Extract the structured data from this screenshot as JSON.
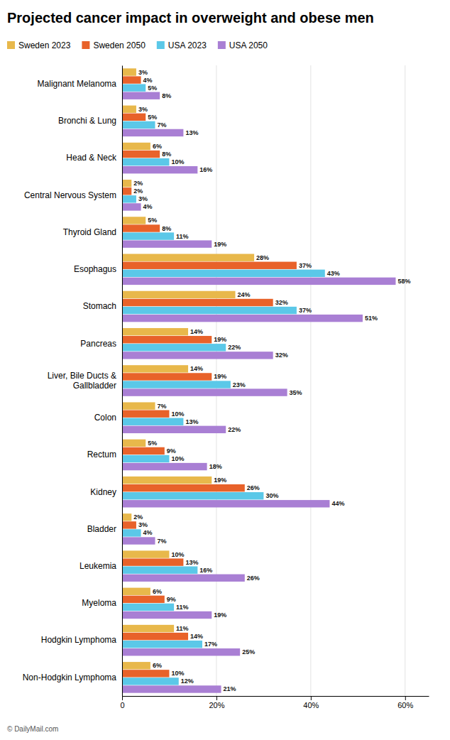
{
  "chart_data": {
    "type": "bar",
    "orientation": "horizontal",
    "title": "Projected cancer impact in overweight and obese men",
    "categories": [
      "Malignant Melanoma",
      "Bronchi & Lung",
      "Head & Neck",
      "Central Nervous System",
      "Thyroid Gland",
      "Esophagus",
      "Stomach",
      "Pancreas",
      "Liver, Bile Ducts &\nGallbladder",
      "Colon",
      "Rectum",
      "Kidney",
      "Bladder",
      "Leukemia",
      "Myeloma",
      "Hodgkin Lymphoma",
      "Non-Hodgkin Lymphoma"
    ],
    "series": [
      {
        "name": "Sweden 2023",
        "color": "#E8B84B",
        "values": [
          3,
          3,
          6,
          2,
          5,
          28,
          24,
          14,
          14,
          7,
          5,
          19,
          2,
          10,
          6,
          11,
          6
        ],
        "value_labels": [
          "3%",
          "3%",
          "6%",
          "2%",
          "5%",
          "28%",
          "24%",
          "14%",
          "14%",
          "7%",
          "5%",
          "19%",
          "2%",
          "10%",
          "6%",
          "11%",
          "6%"
        ]
      },
      {
        "name": "Sweden 2050",
        "color": "#E8622A",
        "values": [
          4,
          5,
          8,
          2,
          8,
          37,
          32,
          19,
          19,
          10,
          9,
          26,
          3,
          13,
          9,
          14,
          10
        ],
        "value_labels": [
          "4%",
          "5%",
          "8%",
          "2%",
          "8%",
          "37%",
          "32%",
          "19%",
          "19%",
          "10%",
          "9%",
          "26%",
          "3%",
          "13%",
          "9%",
          "14%",
          "10%"
        ]
      },
      {
        "name": "USA 2023",
        "color": "#5BC8E8",
        "values": [
          5,
          7,
          10,
          3,
          11,
          43,
          37,
          22,
          23,
          13,
          10,
          30,
          4,
          16,
          11,
          17,
          12
        ],
        "value_labels": [
          "5%",
          "7%",
          "10%",
          "3%",
          "11%",
          "43%",
          "37%",
          "22%",
          "23%",
          "13%",
          "10%",
          "30%",
          "4%",
          "16%",
          "11%",
          "17%",
          "12%"
        ]
      },
      {
        "name": "USA 2050",
        "color": "#A97FD4",
        "values": [
          8,
          13,
          16,
          4,
          19,
          58,
          51,
          32,
          35,
          22,
          18,
          44,
          7,
          26,
          19,
          25,
          21
        ],
        "value_labels": [
          "8%",
          "13%",
          "16%",
          "4%",
          "19%",
          "58%",
          "51%",
          "32%",
          "35%",
          "22%",
          "18%",
          "44%",
          "7%",
          "26%",
          "19%",
          "25%",
          "21%"
        ]
      }
    ],
    "xlim": [
      0,
      65
    ],
    "xticks": [
      0,
      {
        "value": 20,
        "label": "20%"
      },
      {
        "value": 40,
        "label": "40%"
      },
      {
        "value": 60,
        "label": "60%"
      }
    ],
    "grid": true,
    "legend": "top-left",
    "data_labels": true,
    "annotations": [
      "© DailyMail.com"
    ]
  }
}
